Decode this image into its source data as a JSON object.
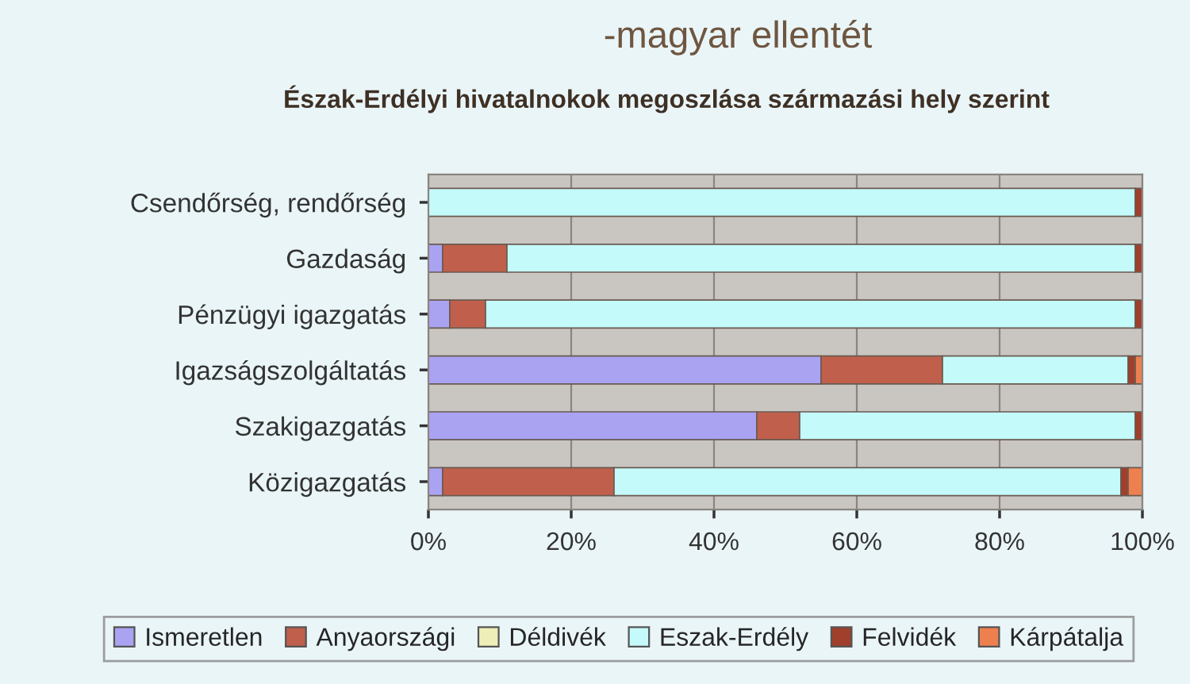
{
  "chart_data": {
    "type": "bar",
    "orientation": "horizontal",
    "stacked": true,
    "title": "-magyar ellentét",
    "subtitle": "Észak-Erdélyi hivatalnokok megoszlása származási hely szerint",
    "categories": [
      "Csendőrség, rendőrség",
      "Gazdaság",
      "Pénzügyi igazgatás",
      "Igazságszolgáltatás",
      "Szakigazgatás",
      "Közigazgatás"
    ],
    "series": [
      {
        "name": "Ismeretlen",
        "color": "#a9a3f2",
        "values": [
          0,
          2,
          3,
          55,
          46,
          2
        ]
      },
      {
        "name": "Anyaországi",
        "color": "#c0604c",
        "values": [
          0,
          9,
          5,
          17,
          6,
          24
        ]
      },
      {
        "name": "Déldivék",
        "color": "#eeeeb8",
        "values": [
          0,
          0,
          0,
          0,
          0,
          0
        ]
      },
      {
        "name": "Eszak-Erdély",
        "color": "#c4fafa",
        "values": [
          99,
          88,
          91,
          26,
          47,
          71
        ]
      },
      {
        "name": "Felvidék",
        "color": "#a0402c",
        "values": [
          1,
          1,
          1,
          1,
          1,
          1
        ]
      },
      {
        "name": "Kárpátalja",
        "color": "#ee8050",
        "values": [
          0,
          0,
          0,
          1,
          0,
          2
        ]
      }
    ],
    "xlim": [
      0,
      100
    ],
    "xticks": [
      {
        "value": 0,
        "label": "0%"
      },
      {
        "value": 20,
        "label": "20%"
      },
      {
        "value": 40,
        "label": "40%"
      },
      {
        "value": 60,
        "label": "60%"
      },
      {
        "value": 80,
        "label": "80%"
      },
      {
        "value": 100,
        "label": "100%"
      }
    ],
    "grid": "x",
    "legend": "bottom"
  }
}
